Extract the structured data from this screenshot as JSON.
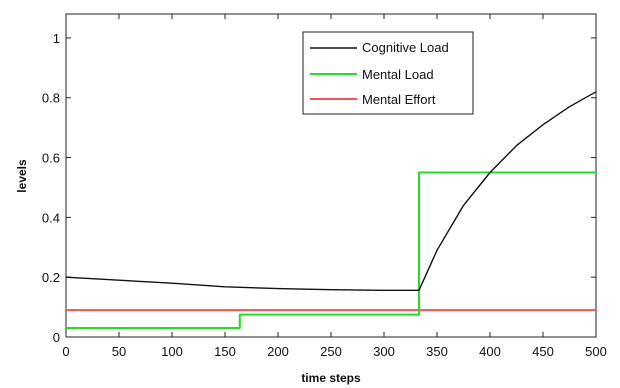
{
  "chart_data": {
    "type": "line",
    "title": "",
    "xlabel": "time steps",
    "ylabel": "levels",
    "xlim": [
      0,
      500
    ],
    "ylim": [
      0,
      1.08
    ],
    "x_ticks": [
      0,
      50,
      100,
      150,
      200,
      250,
      300,
      350,
      400,
      450,
      500
    ],
    "y_ticks": [
      0,
      0.2,
      0.4,
      0.6,
      0.8,
      1
    ],
    "x_tick_labels": [
      "0",
      "50",
      "100",
      "150",
      "200",
      "250",
      "300",
      "350",
      "400",
      "450",
      "500"
    ],
    "y_tick_labels": [
      "0",
      "0.2",
      "0.4",
      "0.6",
      "0.8",
      "1"
    ],
    "grid": false,
    "legend_position": "top-right",
    "series": [
      {
        "name": "Cognitive Load",
        "color": "#111111",
        "x": [
          0,
          50,
          100,
          150,
          200,
          250,
          300,
          333,
          350,
          375,
          400,
          425,
          450,
          475,
          500
        ],
        "y": [
          0.2,
          0.19,
          0.18,
          0.168,
          0.162,
          0.158,
          0.156,
          0.156,
          0.29,
          0.44,
          0.55,
          0.64,
          0.71,
          0.77,
          0.82
        ]
      },
      {
        "name": "Mental Load",
        "color": "#22dd22",
        "x": [
          0,
          164,
          164,
          333,
          333,
          500
        ],
        "y": [
          0.03,
          0.03,
          0.075,
          0.075,
          0.55,
          0.55
        ]
      },
      {
        "name": "Mental Effort",
        "color": "#ee5555",
        "x": [
          0,
          500
        ],
        "y": [
          0.09,
          0.09
        ]
      }
    ]
  }
}
